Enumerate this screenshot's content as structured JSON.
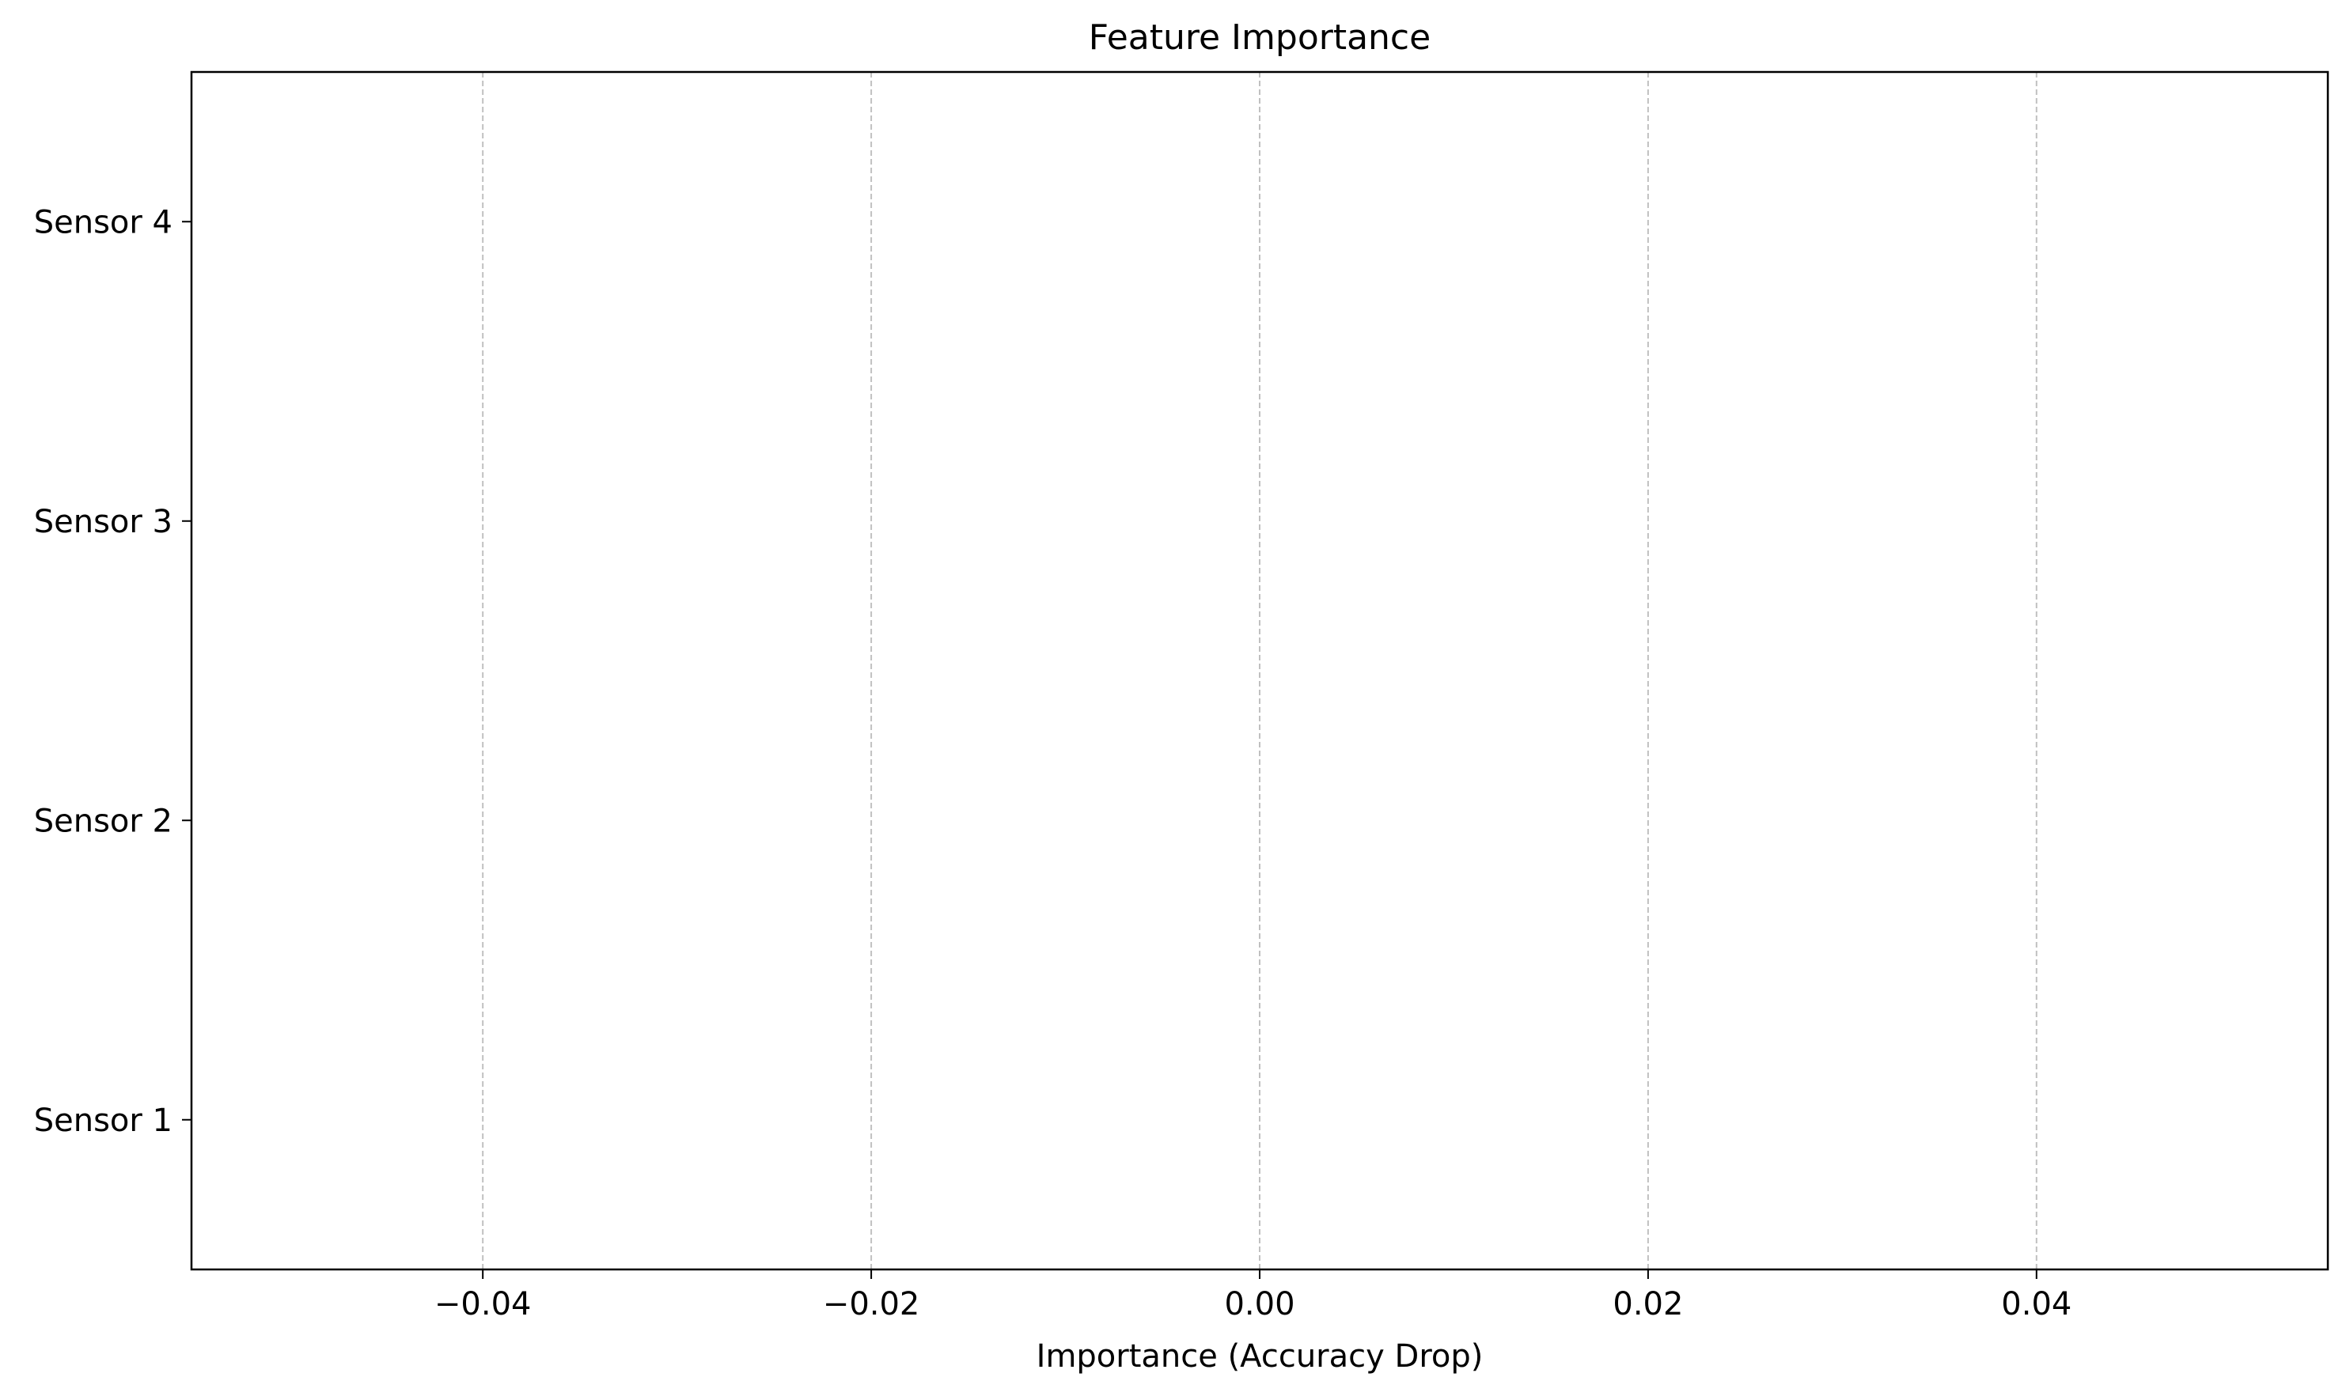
{
  "chart_data": {
    "type": "bar",
    "orientation": "horizontal",
    "title": "Feature Importance",
    "xlabel": "Importance (Accuracy Drop)",
    "ylabel": "",
    "categories": [
      "Sensor 1",
      "Sensor 2",
      "Sensor 3",
      "Sensor 4"
    ],
    "values": [
      0.0,
      0.0,
      0.0,
      0.0
    ],
    "xlim": [
      -0.055,
      0.055
    ],
    "xticks": [
      -0.04,
      -0.02,
      0.0,
      0.02,
      0.04
    ],
    "xtick_labels": [
      "−0.04",
      "−0.02",
      "0.00",
      "0.02",
      "0.04"
    ],
    "grid": {
      "x": true,
      "y": false,
      "style": "dashed"
    },
    "colors": {
      "grid": "#c0c0c0",
      "axes": "#000000",
      "bar": "#4c72b0",
      "background": "#ffffff"
    }
  }
}
